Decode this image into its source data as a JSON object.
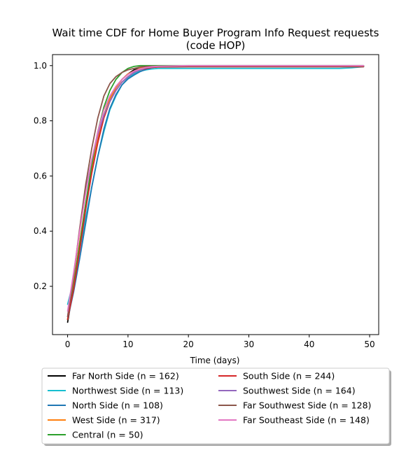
{
  "chart_data": {
    "type": "line",
    "title": "Wait time CDF for Home Buyer Program Info Request  requests",
    "subtitle": "(code HOP)",
    "xlabel": "Time (days)",
    "ylabel": "",
    "xlim": [
      -2.5,
      51.5
    ],
    "ylim": [
      0.025,
      1.04
    ],
    "xticks": [
      0,
      10,
      20,
      30,
      40,
      50
    ],
    "yticks": [
      0.2,
      0.4,
      0.6,
      0.8,
      1.0
    ],
    "xtick_labels": [
      "0",
      "10",
      "20",
      "30",
      "40",
      "50"
    ],
    "ytick_labels": [
      "0.2",
      "0.4",
      "0.6",
      "0.8",
      "1.0"
    ],
    "grid": false,
    "legend_placement": "below",
    "series": [
      {
        "name": "Far North Side (n = 162)",
        "color": "#000000",
        "x": [
          0,
          1,
          2,
          3,
          4,
          5,
          6,
          7,
          8,
          9,
          10,
          11,
          12,
          13,
          14,
          15,
          20,
          30,
          40,
          49
        ],
        "y": [
          0.07,
          0.2,
          0.35,
          0.49,
          0.62,
          0.73,
          0.82,
          0.88,
          0.92,
          0.95,
          0.97,
          0.985,
          0.99,
          0.995,
          0.997,
          0.998,
          0.998,
          0.998,
          0.998,
          0.998
        ]
      },
      {
        "name": "Northwest Side (n = 113)",
        "color": "#17becf",
        "x": [
          0,
          1,
          2,
          3,
          4,
          5,
          6,
          7,
          8,
          9,
          10,
          11,
          12,
          13,
          14,
          15,
          20,
          30,
          40,
          45,
          47,
          49
        ],
        "y": [
          0.135,
          0.22,
          0.33,
          0.45,
          0.56,
          0.67,
          0.76,
          0.84,
          0.89,
          0.93,
          0.955,
          0.97,
          0.98,
          0.985,
          0.988,
          0.99,
          0.99,
          0.99,
          0.99,
          0.99,
          0.992,
          0.996
        ]
      },
      {
        "name": "North Side (n = 108)",
        "color": "#1f77b4",
        "x": [
          0,
          1,
          2,
          3,
          4,
          5,
          6,
          7,
          8,
          9,
          10,
          11,
          12,
          13,
          14,
          15,
          20,
          30,
          40,
          49
        ],
        "y": [
          0.08,
          0.18,
          0.3,
          0.43,
          0.56,
          0.67,
          0.77,
          0.845,
          0.895,
          0.93,
          0.952,
          0.966,
          0.978,
          0.987,
          0.993,
          0.996,
          0.998,
          0.998,
          0.998,
          0.998
        ]
      },
      {
        "name": "West Side (n = 317)",
        "color": "#ff7f0e",
        "x": [
          0,
          1,
          2,
          3,
          4,
          5,
          6,
          7,
          8,
          9,
          10,
          11,
          12,
          13,
          14,
          15,
          20,
          30,
          40,
          49
        ],
        "y": [
          0.08,
          0.21,
          0.36,
          0.5,
          0.63,
          0.74,
          0.82,
          0.88,
          0.92,
          0.95,
          0.97,
          0.98,
          0.99,
          0.995,
          0.997,
          0.998,
          0.998,
          0.998,
          0.998,
          0.998
        ]
      },
      {
        "name": "Central (n = 50)",
        "color": "#2ca02c",
        "x": [
          0,
          1,
          2,
          3,
          4,
          5,
          6,
          7,
          8,
          9,
          10,
          11,
          12,
          13,
          14,
          15,
          20,
          30,
          40,
          49
        ],
        "y": [
          0.08,
          0.2,
          0.35,
          0.5,
          0.64,
          0.76,
          0.85,
          0.91,
          0.95,
          0.975,
          0.99,
          0.997,
          1.0,
          1.0,
          1.0,
          1.0,
          1.0,
          1.0,
          1.0,
          1.0
        ]
      },
      {
        "name": "South Side (n = 244)",
        "color": "#d62728",
        "x": [
          0,
          1,
          2,
          3,
          4,
          5,
          6,
          7,
          8,
          9,
          10,
          11,
          12,
          13,
          14,
          15,
          20,
          30,
          40,
          49
        ],
        "y": [
          0.08,
          0.19,
          0.33,
          0.48,
          0.61,
          0.72,
          0.81,
          0.87,
          0.91,
          0.94,
          0.96,
          0.975,
          0.985,
          0.99,
          0.993,
          0.995,
          0.996,
          0.996,
          0.996,
          0.996
        ]
      },
      {
        "name": "Southwest Side (n = 164)",
        "color": "#9467bd",
        "x": [
          0,
          1,
          2,
          3,
          4,
          5,
          6,
          7,
          8,
          9,
          10,
          11,
          12,
          13,
          14,
          15,
          20,
          30,
          40,
          49
        ],
        "y": [
          0.09,
          0.24,
          0.4,
          0.55,
          0.66,
          0.75,
          0.82,
          0.87,
          0.91,
          0.94,
          0.96,
          0.975,
          0.985,
          0.992,
          0.995,
          0.997,
          0.998,
          0.998,
          0.998,
          0.998
        ]
      },
      {
        "name": "Far Southwest Side (n = 128)",
        "color": "#8c564b",
        "x": [
          0,
          1,
          2,
          3,
          4,
          5,
          6,
          7,
          8,
          9,
          10,
          11,
          12,
          13,
          14,
          15,
          20,
          30,
          40,
          49
        ],
        "y": [
          0.09,
          0.24,
          0.41,
          0.57,
          0.7,
          0.81,
          0.89,
          0.935,
          0.96,
          0.975,
          0.985,
          0.99,
          0.995,
          0.997,
          0.998,
          0.998,
          0.998,
          0.998,
          0.998,
          0.998
        ]
      },
      {
        "name": "Far Southeast Side (n = 148)",
        "color": "#e377c2",
        "x": [
          0,
          1,
          2,
          3,
          4,
          5,
          6,
          7,
          8,
          9,
          10,
          11,
          12,
          13,
          14,
          15,
          20,
          30,
          40,
          49
        ],
        "y": [
          0.11,
          0.25,
          0.4,
          0.54,
          0.66,
          0.76,
          0.84,
          0.89,
          0.925,
          0.95,
          0.968,
          0.98,
          0.988,
          0.993,
          0.996,
          0.998,
          1.0,
          1.0,
          1.0,
          1.0
        ]
      }
    ]
  }
}
